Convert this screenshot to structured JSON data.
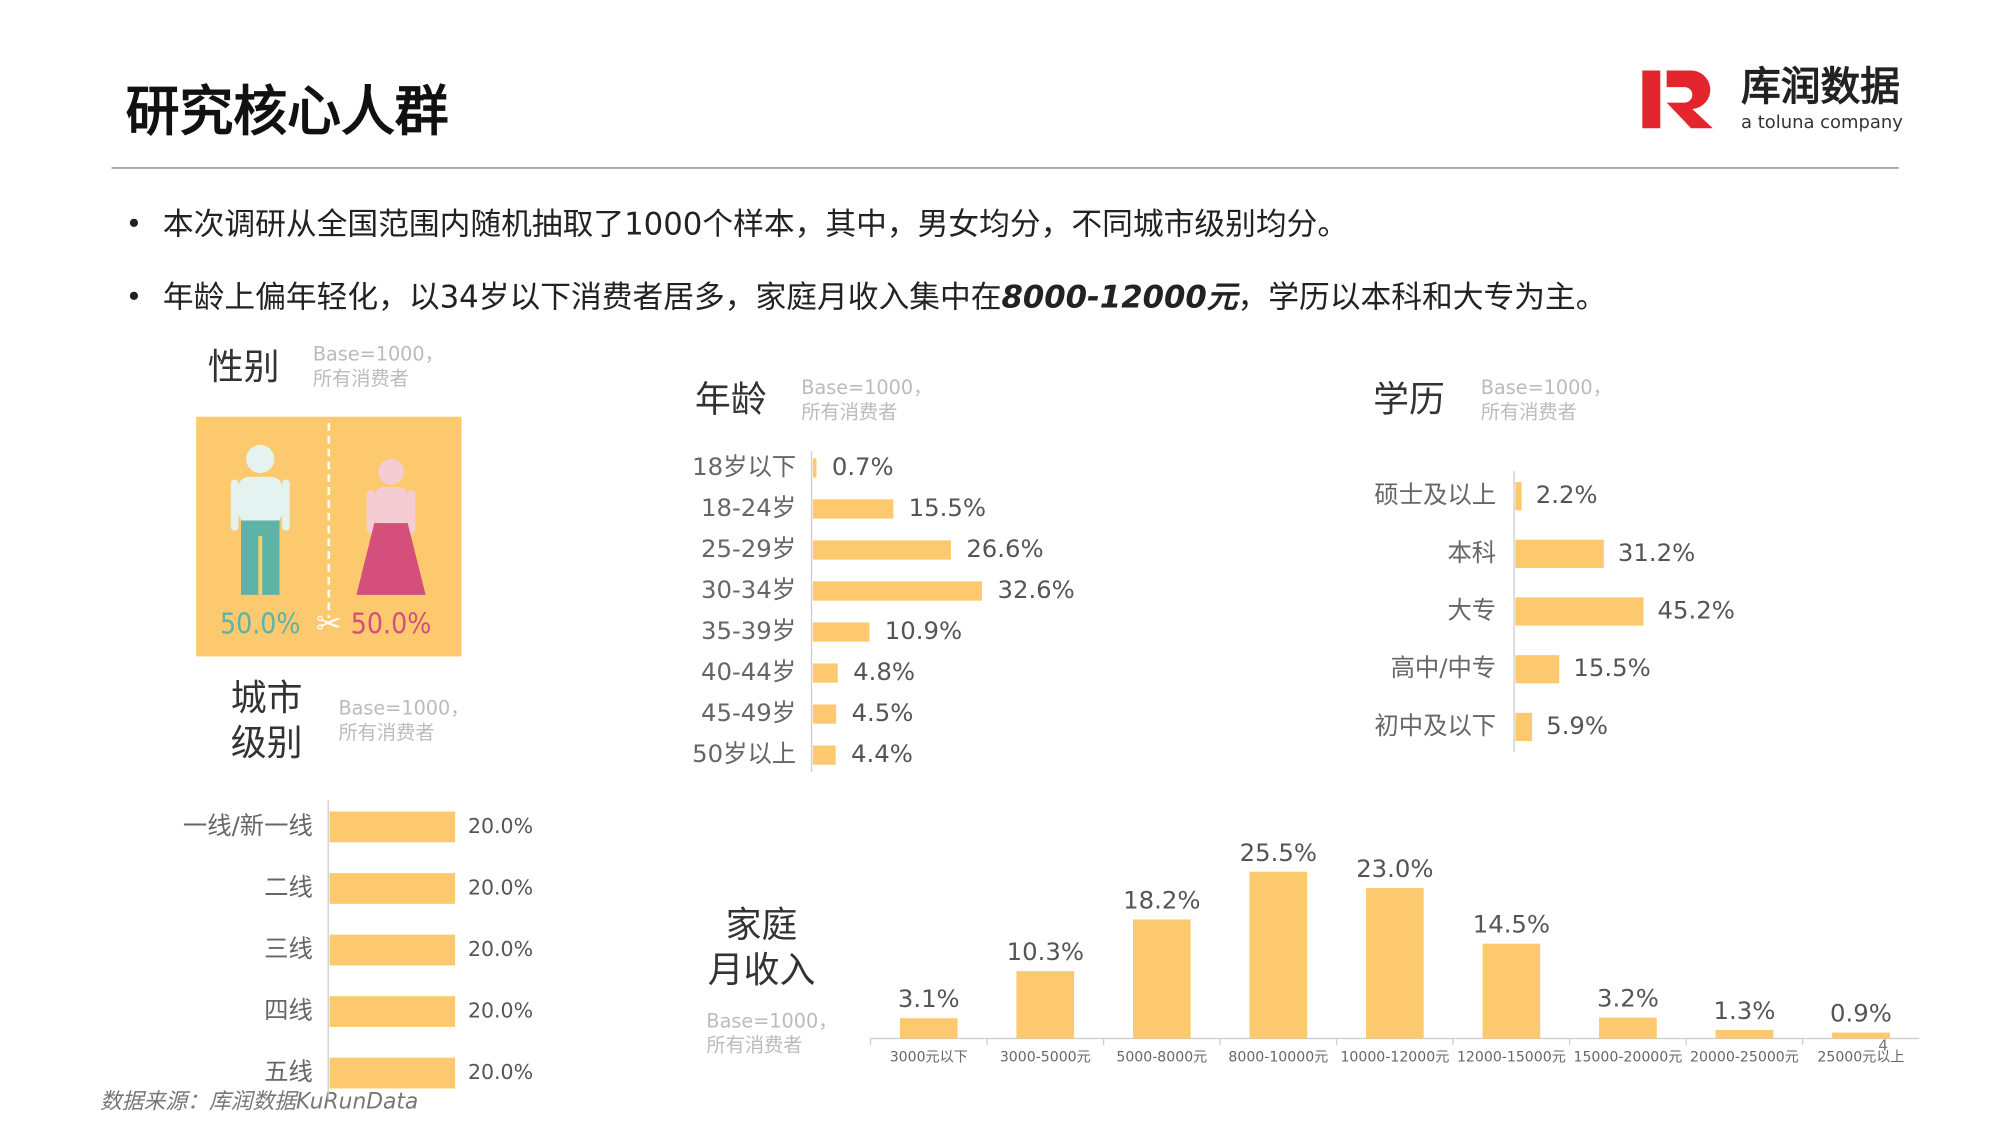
{
  "header": {
    "title": "研究核心人群",
    "logo_name": "库润数据",
    "logo_sub": "a toluna company"
  },
  "bullets": [
    [
      "本次调研从全国范围内随机抽取了1000个样本，其中，男女均分，不同城市级别均分。"
    ],
    [
      "年龄上偏年轻化，以34岁以下消费者居多，家庭月收入集中在",
      "8000-12000元",
      "，学历以本科和大专为主。"
    ]
  ],
  "chart_data": [
    {
      "type": "pictogram",
      "title": "性别",
      "base_note": [
        "Base=1000，",
        "所有消费者"
      ],
      "values": [
        50.0,
        50.0
      ],
      "value_labels": [
        "50.0%",
        "50.0%"
      ],
      "colors": [
        "#5db3a6",
        "#d44f7c"
      ],
      "background": "#fdc96e"
    },
    {
      "type": "hbar",
      "title": "年龄",
      "base_note": [
        "Base=1000，",
        "所有消费者"
      ],
      "categories": [
        "18岁以下",
        "18-24岁",
        "25-29岁",
        "30-34岁",
        "35-39岁",
        "40-44岁",
        "45-49岁",
        "50岁以上"
      ],
      "values": [
        0.7,
        15.5,
        26.6,
        32.6,
        10.9,
        4.8,
        4.5,
        4.4
      ],
      "value_labels": [
        "0.7%",
        "15.5%",
        "26.6%",
        "32.6%",
        "10.9%",
        "4.8%",
        "4.5%",
        "4.4%"
      ],
      "color": "#fdc96e"
    },
    {
      "type": "hbar",
      "title": "学历",
      "base_note": [
        "Base=1000，",
        "所有消费者"
      ],
      "categories": [
        "硕士及以上",
        "本科",
        "大专",
        "高中/中专",
        "初中及以下"
      ],
      "values": [
        2.2,
        31.2,
        45.2,
        15.5,
        5.9
      ],
      "value_labels": [
        "2.2%",
        "31.2%",
        "45.2%",
        "15.5%",
        "5.9%"
      ],
      "color": "#fdc96e"
    },
    {
      "type": "hbar",
      "title_lines": [
        "城市",
        "级别"
      ],
      "base_note": [
        "Base=1000，",
        "所有消费者"
      ],
      "categories": [
        "一线/新一线",
        "二线",
        "三线",
        "四线",
        "五线"
      ],
      "values": [
        20.0,
        20.0,
        20.0,
        20.0,
        20.0
      ],
      "value_labels": [
        "20.0%",
        "20.0%",
        "20.0%",
        "20.0%",
        "20.0%"
      ],
      "color": "#fdc96e"
    },
    {
      "type": "bar",
      "title_lines": [
        "家庭",
        "月收入"
      ],
      "base_note": [
        "Base=1000，",
        "所有消费者"
      ],
      "categories": [
        "3000元以下",
        "3000-5000元",
        "5000-8000元",
        "8000-10000元",
        "10000-12000元",
        "12000-15000元",
        "15000-20000元",
        "20000-25000元",
        "25000元以上"
      ],
      "values": [
        3.1,
        10.3,
        18.2,
        25.5,
        23.0,
        14.5,
        3.2,
        1.3,
        0.9
      ],
      "value_labels": [
        "3.1%",
        "10.3%",
        "18.2%",
        "25.5%",
        "23.0%",
        "14.5%",
        "3.2%",
        "1.3%",
        "0.9%"
      ],
      "color": "#fdc96e"
    }
  ],
  "source": "数据来源：库润数据KuRunData",
  "page_number": "4"
}
